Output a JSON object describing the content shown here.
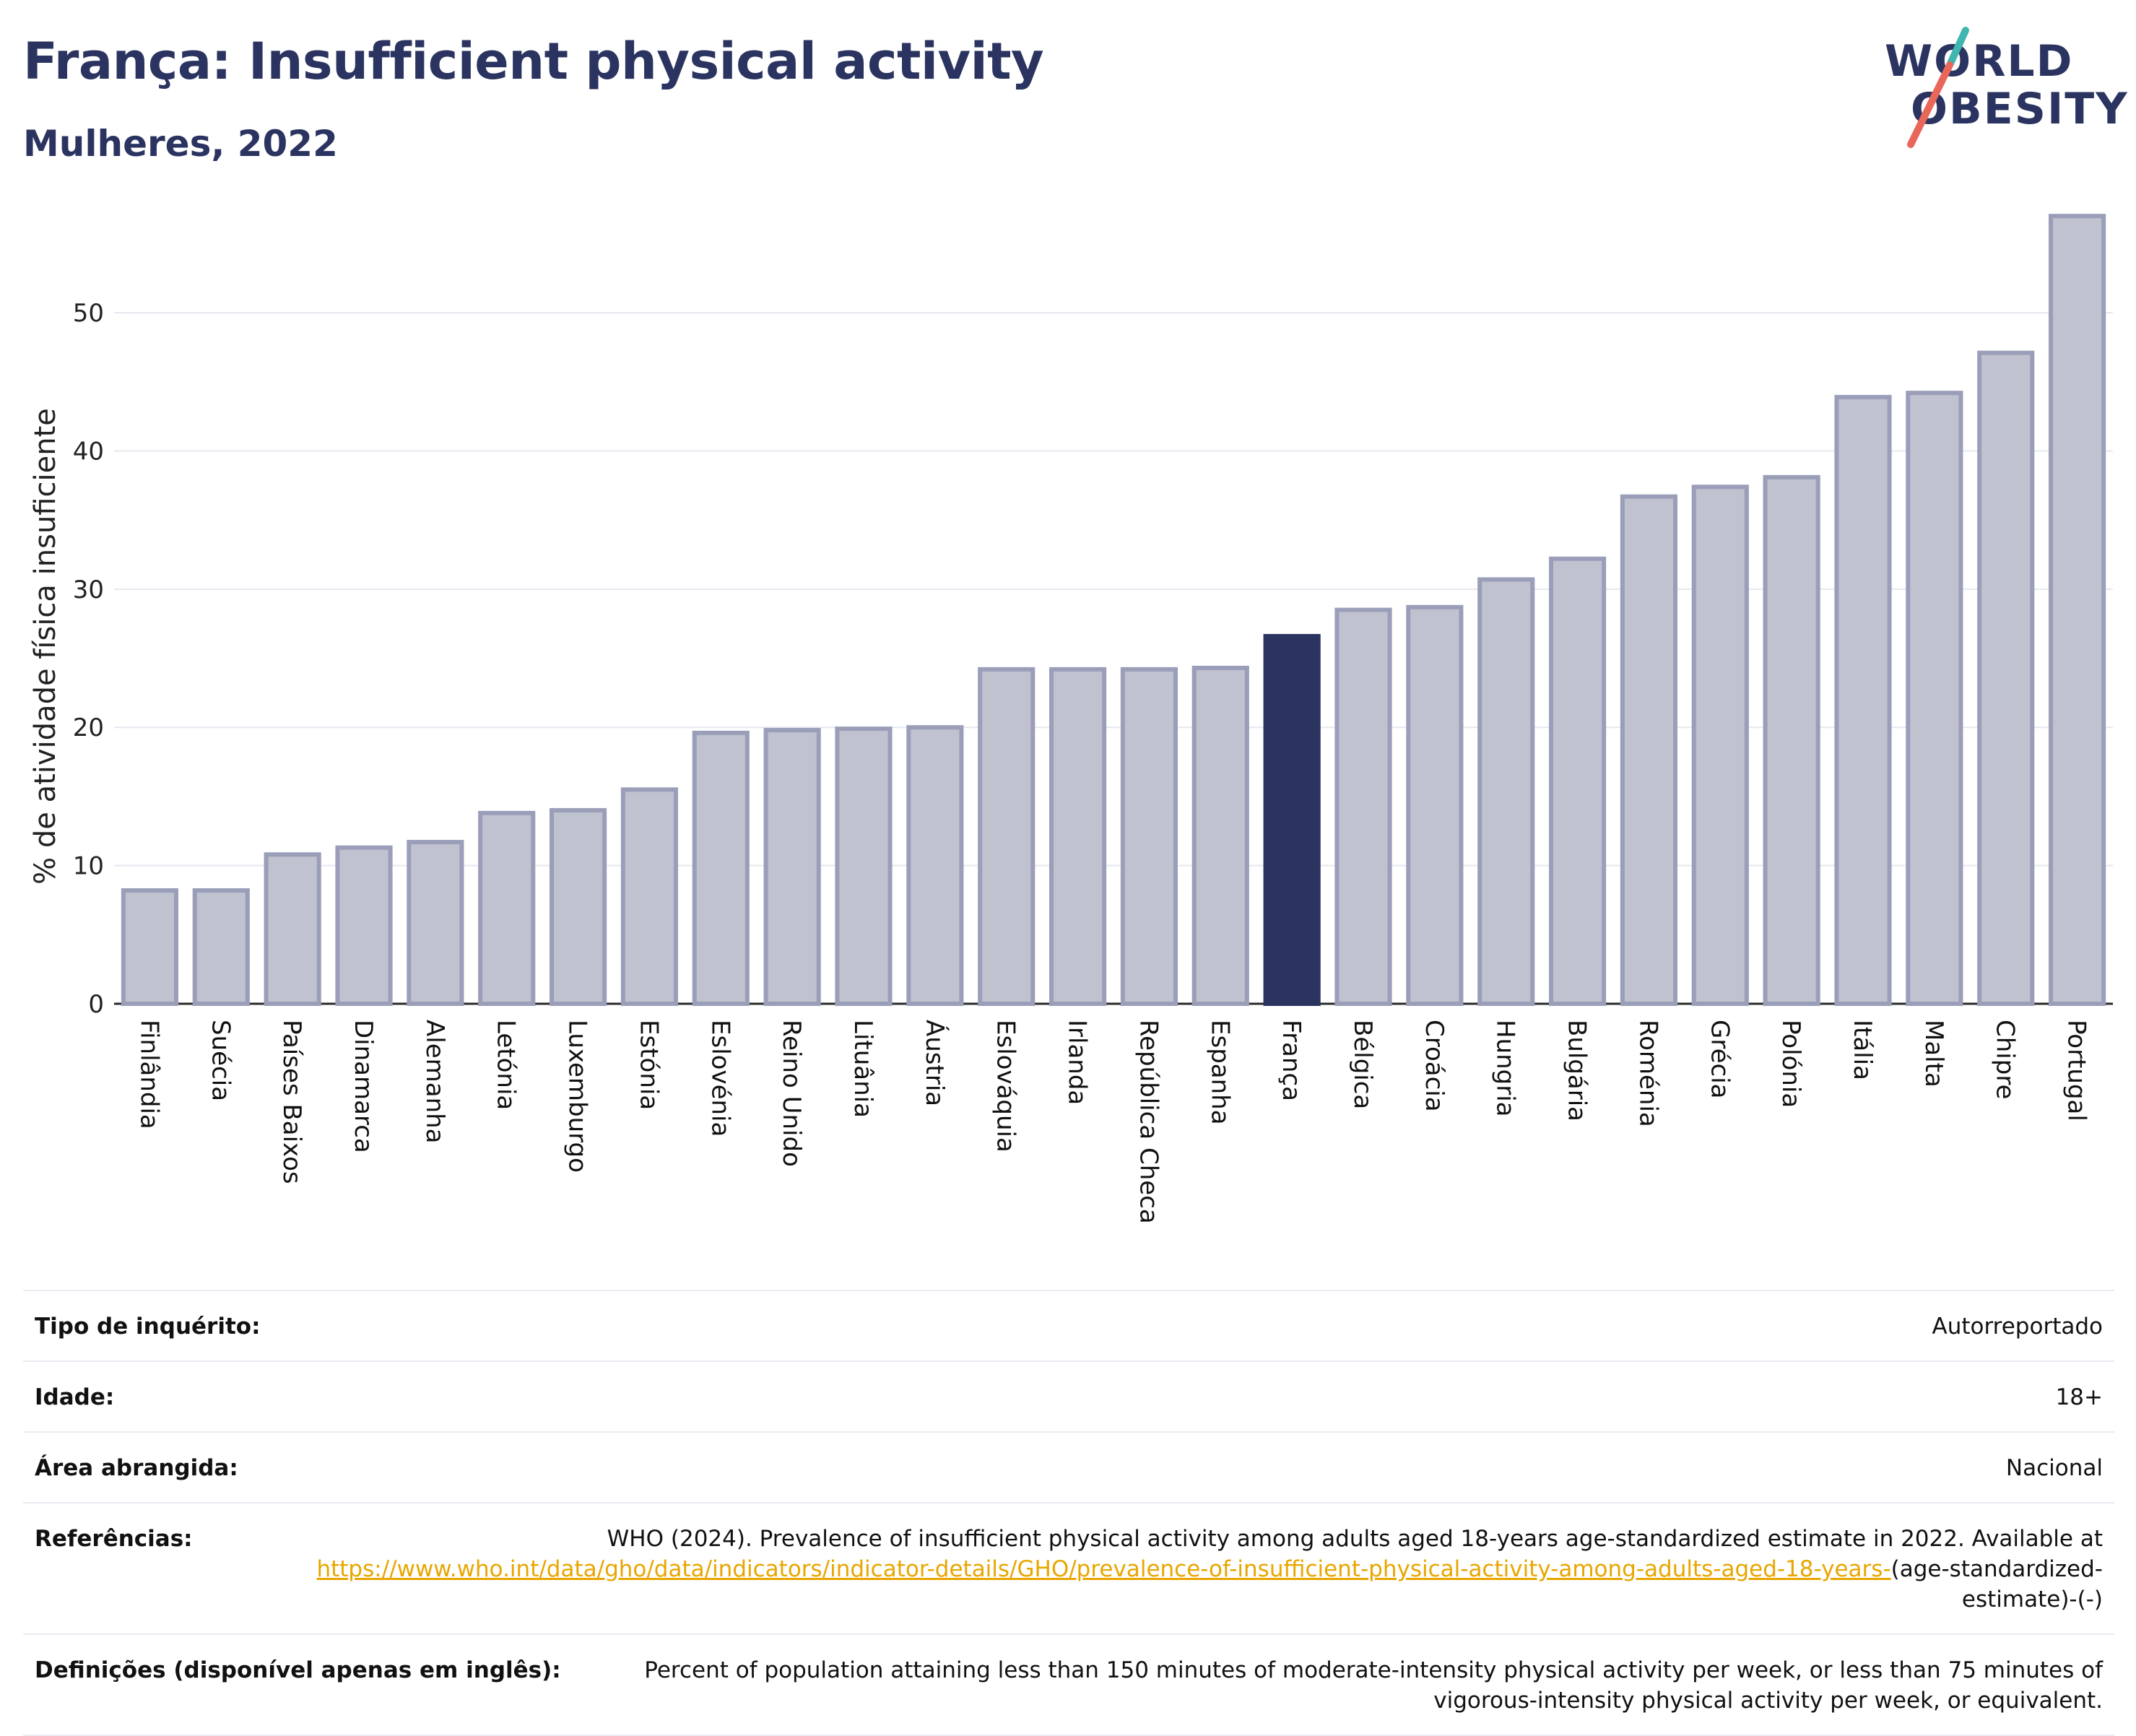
{
  "header": {
    "title": "França: Insufficient physical activity",
    "subtitle": "Mulheres, 2022"
  },
  "logo": {
    "line1": "WORLD",
    "line2": "OBESITY",
    "colors": {
      "navy": "#2b3460",
      "teal": "#3fb6b0",
      "coral": "#e8675a"
    }
  },
  "chart_data": {
    "type": "bar",
    "ylabel": "% de atividade física insuficiente",
    "ylim": [
      0,
      58
    ],
    "yticks": [
      0,
      10,
      20,
      30,
      40,
      50
    ],
    "grid": true,
    "highlight": "França",
    "colors": {
      "bar": "#c0c2cf",
      "bar_border": "#9a9eb8",
      "highlight": "#2b3460"
    },
    "categories": [
      "Finlândia",
      "Suécia",
      "Países Baixos",
      "Dinamarca",
      "Alemanha",
      "Letónia",
      "Luxemburgo",
      "Estónia",
      "Eslovénia",
      "Reino Unido",
      "Lituânia",
      "Áustria",
      "Eslováquia",
      "Irlanda",
      "República Checa",
      "Espanha",
      "França",
      "Bélgica",
      "Croácia",
      "Hungria",
      "Bulgária",
      "Roménia",
      "Grécia",
      "Polónia",
      "Itália",
      "Malta",
      "Chipre",
      "Portugal"
    ],
    "values": [
      8.2,
      8.2,
      10.8,
      11.3,
      11.7,
      13.8,
      14.0,
      15.5,
      19.6,
      19.8,
      19.9,
      20.0,
      24.2,
      24.2,
      24.2,
      24.3,
      26.6,
      28.5,
      28.7,
      30.7,
      32.2,
      36.7,
      37.4,
      38.1,
      43.9,
      44.2,
      47.1,
      57.0
    ]
  },
  "meta": {
    "rows": [
      {
        "label": "Tipo de inquérito:",
        "value": "Autorreportado"
      },
      {
        "label": "Idade:",
        "value": "18+"
      },
      {
        "label": "Área abrangida:",
        "value": "Nacional"
      }
    ],
    "references": {
      "label": "Referências:",
      "text": "WHO (2024). Prevalence of insufficient physical activity among adults aged 18-years age-standardized estimate in 2022. Available at",
      "link": "https://www.who.int/data/gho/data/indicators/indicator-details/GHO/prevalence-of-insufficient-physical-activity-among-adults-aged-18-years-",
      "suffix": "(age-standardized-estimate)-(-)"
    },
    "definitions": {
      "label": "Definições (disponível apenas em inglês):",
      "value": "Percent of population attaining less than 150 minutes of moderate-intensity physical activity per week, or less than 75 minutes of vigorous-intensity physical activity per week, or equivalent."
    }
  }
}
